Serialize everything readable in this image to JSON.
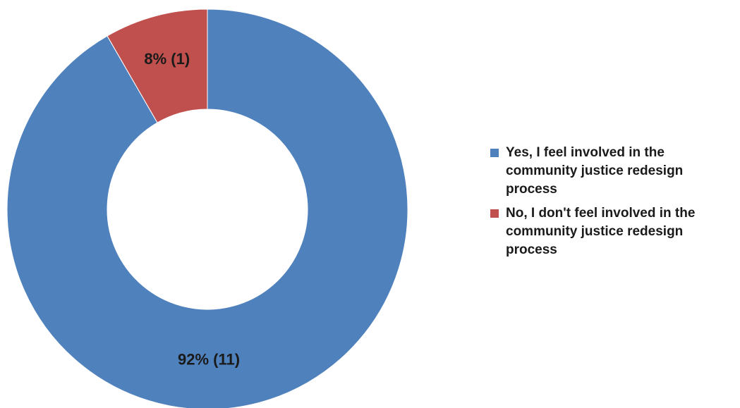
{
  "chart_data": {
    "type": "pie",
    "variant": "donut",
    "legend_position": "right",
    "slices": [
      {
        "name": "Yes, I feel involved in the community justice redesign process",
        "legend_label": "Yes, I feel involved in the\ncommunity justice redesign\nprocess",
        "value": 11,
        "percent": 92,
        "data_label": "92% (11)",
        "color": "#4F81BD"
      },
      {
        "name": "No, I don't feel involved in the community justice redesign process",
        "legend_label": "No, I don't feel involved in the\ncommunity justice redesign\nprocess",
        "value": 1,
        "percent": 8,
        "data_label": "8% (1)",
        "color": "#C0504D"
      }
    ]
  }
}
